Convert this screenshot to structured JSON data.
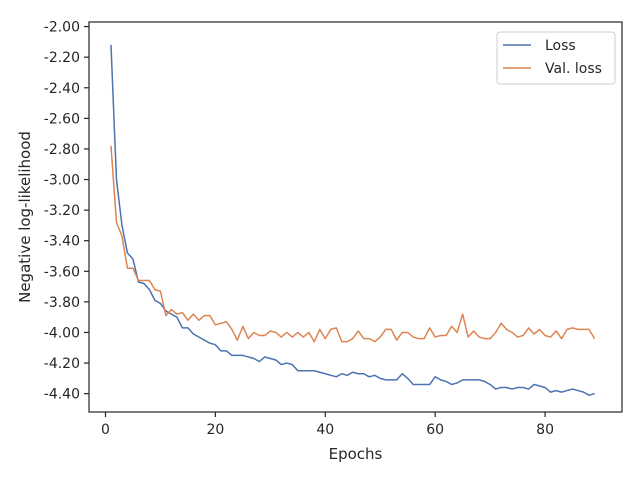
{
  "chart_data": {
    "type": "line",
    "xlabel": "Epochs",
    "ylabel": "Negative log-likelihood",
    "xlim": [
      -3,
      94
    ],
    "ylim": [
      -4.52,
      -1.97
    ],
    "xticks": [
      0,
      20,
      40,
      60,
      80
    ],
    "xtick_labels": [
      "0",
      "20",
      "40",
      "60",
      "80"
    ],
    "yticks": [
      -2.0,
      -2.2,
      -2.4,
      -2.6,
      -2.8,
      -3.0,
      -3.2,
      -3.4,
      -3.6,
      -3.8,
      -4.0,
      -4.2,
      -4.4
    ],
    "ytick_labels": [
      "-2.00",
      "-2.20",
      "-2.40",
      "-2.60",
      "-2.80",
      "-3.00",
      "-3.20",
      "-3.40",
      "-3.60",
      "-3.80",
      "-4.00",
      "-4.20",
      "-4.40"
    ],
    "grid": false,
    "legend": "top-right",
    "x": [
      1,
      2,
      3,
      4,
      5,
      6,
      7,
      8,
      9,
      10,
      11,
      12,
      13,
      14,
      15,
      16,
      17,
      18,
      19,
      20,
      21,
      22,
      23,
      24,
      25,
      26,
      27,
      28,
      29,
      30,
      31,
      32,
      33,
      34,
      35,
      36,
      37,
      38,
      39,
      40,
      41,
      42,
      43,
      44,
      45,
      46,
      47,
      48,
      49,
      50,
      51,
      52,
      53,
      54,
      55,
      56,
      57,
      58,
      59,
      60,
      61,
      62,
      63,
      64,
      65,
      66,
      67,
      68,
      69,
      70,
      71,
      72,
      73,
      74,
      75,
      76,
      77,
      78,
      79,
      80,
      81,
      82,
      83,
      84,
      85,
      86,
      87,
      88,
      89
    ],
    "series": [
      {
        "name": "Loss",
        "color": "#4c72b0",
        "values": [
          -2.12,
          -3.0,
          -3.3,
          -3.48,
          -3.52,
          -3.67,
          -3.68,
          -3.72,
          -3.79,
          -3.81,
          -3.86,
          -3.88,
          -3.9,
          -3.97,
          -3.97,
          -4.01,
          -4.03,
          -4.05,
          -4.07,
          -4.08,
          -4.12,
          -4.12,
          -4.15,
          -4.15,
          -4.15,
          -4.16,
          -4.17,
          -4.19,
          -4.16,
          -4.17,
          -4.18,
          -4.21,
          -4.2,
          -4.21,
          -4.25,
          -4.25,
          -4.25,
          -4.25,
          -4.26,
          -4.27,
          -4.28,
          -4.29,
          -4.27,
          -4.28,
          -4.26,
          -4.27,
          -4.27,
          -4.29,
          -4.28,
          -4.3,
          -4.31,
          -4.31,
          -4.31,
          -4.27,
          -4.3,
          -4.34,
          -4.34,
          -4.34,
          -4.34,
          -4.29,
          -4.31,
          -4.32,
          -4.34,
          -4.33,
          -4.31,
          -4.31,
          -4.31,
          -4.31,
          -4.32,
          -4.34,
          -4.37,
          -4.36,
          -4.36,
          -4.37,
          -4.36,
          -4.36,
          -4.37,
          -4.34,
          -4.35,
          -4.36,
          -4.39,
          -4.38,
          -4.39,
          -4.38,
          -4.37,
          -4.38,
          -4.39,
          -4.41,
          -4.4
        ]
      },
      {
        "name": "Val. loss",
        "color": "#dd8452",
        "values": [
          -2.78,
          -3.28,
          -3.37,
          -3.58,
          -3.58,
          -3.66,
          -3.66,
          -3.66,
          -3.72,
          -3.73,
          -3.89,
          -3.85,
          -3.88,
          -3.87,
          -3.92,
          -3.88,
          -3.92,
          -3.89,
          -3.89,
          -3.95,
          -3.94,
          -3.93,
          -3.98,
          -4.05,
          -3.96,
          -4.04,
          -4.0,
          -4.02,
          -4.02,
          -3.99,
          -4.0,
          -4.03,
          -4.0,
          -4.03,
          -4.0,
          -4.03,
          -4.0,
          -4.06,
          -3.98,
          -4.04,
          -3.98,
          -3.97,
          -4.06,
          -4.06,
          -4.04,
          -3.99,
          -4.04,
          -4.04,
          -4.06,
          -4.03,
          -3.98,
          -3.98,
          -4.05,
          -4.0,
          -4.0,
          -4.03,
          -4.04,
          -4.04,
          -3.97,
          -4.03,
          -4.02,
          -4.02,
          -3.96,
          -4.0,
          -3.88,
          -4.03,
          -3.99,
          -4.03,
          -4.04,
          -4.04,
          -4.0,
          -3.94,
          -3.98,
          -4.0,
          -4.03,
          -4.02,
          -3.97,
          -4.01,
          -3.98,
          -4.02,
          -4.03,
          -3.99,
          -4.04,
          -3.98,
          -3.97,
          -3.98,
          -3.98,
          -3.98,
          -4.04
        ]
      }
    ]
  }
}
